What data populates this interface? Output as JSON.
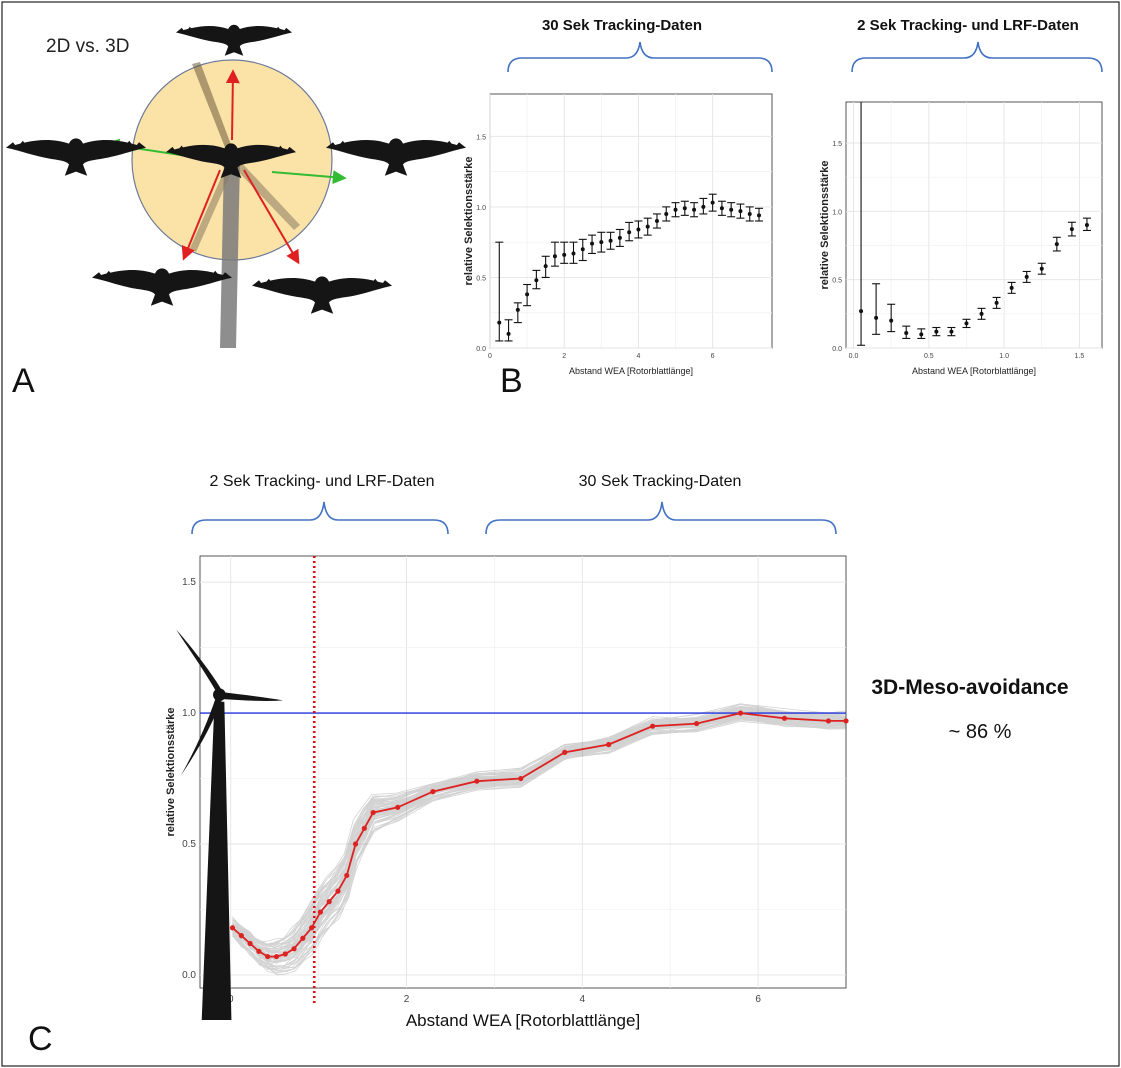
{
  "panels": {
    "a": {
      "letter": "A",
      "label": "2D vs. 3D"
    },
    "b": {
      "letter": "B"
    },
    "c": {
      "letter": "C"
    }
  },
  "colors": {
    "brace": "#4472c4",
    "reference_line": "#2233dd",
    "threshold_line": "#dd1111",
    "fit_line": "#dd2222",
    "rotor_disc": "#fbe3a8",
    "arrow_red": "#e02020",
    "arrow_green": "#33bb33",
    "silhouette": "#151515"
  },
  "icons": [
    "eagle-silhouette-icon",
    "wind-turbine-icon"
  ],
  "annotation": {
    "title": "3D-Meso-avoidance",
    "value": "~ 86 %"
  },
  "chart_data": [
    {
      "id": "b-left",
      "type": "scatter",
      "header": "30 Sek Tracking-Daten",
      "xlabel": "Abstand WEA [Rotorblattlänge]",
      "ylabel": "relative Selektionsstärke",
      "xlim": [
        0,
        7.6
      ],
      "ylim": [
        0,
        1.8
      ],
      "xticks": [
        {
          "v": 0,
          "label": "0"
        },
        {
          "v": 2,
          "label": "2"
        },
        {
          "v": 4,
          "label": "4"
        },
        {
          "v": 6,
          "label": "6"
        }
      ],
      "yticks": [
        {
          "v": 0,
          "label": "0.0"
        },
        {
          "v": 0.5,
          "label": "0.5"
        },
        {
          "v": 1,
          "label": "1.0"
        },
        {
          "v": 1.5,
          "label": "1.5"
        }
      ],
      "grid": true,
      "points": [
        {
          "x": 0.25,
          "y": 0.18,
          "lo": 0.05,
          "hi": 0.75
        },
        {
          "x": 0.5,
          "y": 0.1,
          "lo": 0.05,
          "hi": 0.2
        },
        {
          "x": 0.75,
          "y": 0.27,
          "lo": 0.18,
          "hi": 0.32
        },
        {
          "x": 1.0,
          "y": 0.38,
          "lo": 0.3,
          "hi": 0.45
        },
        {
          "x": 1.25,
          "y": 0.48,
          "lo": 0.42,
          "hi": 0.55
        },
        {
          "x": 1.5,
          "y": 0.58,
          "lo": 0.5,
          "hi": 0.65
        },
        {
          "x": 1.75,
          "y": 0.65,
          "lo": 0.58,
          "hi": 0.75
        },
        {
          "x": 2.0,
          "y": 0.66,
          "lo": 0.6,
          "hi": 0.75
        },
        {
          "x": 2.25,
          "y": 0.67,
          "lo": 0.6,
          "hi": 0.75
        },
        {
          "x": 2.5,
          "y": 0.7,
          "lo": 0.62,
          "hi": 0.77
        },
        {
          "x": 2.75,
          "y": 0.74,
          "lo": 0.67,
          "hi": 0.8
        },
        {
          "x": 3.0,
          "y": 0.75,
          "lo": 0.68,
          "hi": 0.82
        },
        {
          "x": 3.25,
          "y": 0.76,
          "lo": 0.7,
          "hi": 0.82
        },
        {
          "x": 3.5,
          "y": 0.78,
          "lo": 0.72,
          "hi": 0.84
        },
        {
          "x": 3.75,
          "y": 0.82,
          "lo": 0.76,
          "hi": 0.89
        },
        {
          "x": 4.0,
          "y": 0.84,
          "lo": 0.78,
          "hi": 0.9
        },
        {
          "x": 4.25,
          "y": 0.86,
          "lo": 0.8,
          "hi": 0.92
        },
        {
          "x": 4.5,
          "y": 0.9,
          "lo": 0.85,
          "hi": 0.95
        },
        {
          "x": 4.75,
          "y": 0.95,
          "lo": 0.9,
          "hi": 1.0
        },
        {
          "x": 5.0,
          "y": 0.98,
          "lo": 0.93,
          "hi": 1.03
        },
        {
          "x": 5.25,
          "y": 0.99,
          "lo": 0.94,
          "hi": 1.04
        },
        {
          "x": 5.5,
          "y": 0.98,
          "lo": 0.93,
          "hi": 1.03
        },
        {
          "x": 5.75,
          "y": 1.0,
          "lo": 0.95,
          "hi": 1.06
        },
        {
          "x": 6.0,
          "y": 1.03,
          "lo": 0.97,
          "hi": 1.09
        },
        {
          "x": 6.25,
          "y": 0.99,
          "lo": 0.94,
          "hi": 1.04
        },
        {
          "x": 6.5,
          "y": 0.98,
          "lo": 0.93,
          "hi": 1.03
        },
        {
          "x": 6.75,
          "y": 0.97,
          "lo": 0.92,
          "hi": 1.02
        },
        {
          "x": 7.0,
          "y": 0.95,
          "lo": 0.9,
          "hi": 1.0
        },
        {
          "x": 7.25,
          "y": 0.94,
          "lo": 0.9,
          "hi": 0.99
        }
      ]
    },
    {
      "id": "b-right",
      "type": "scatter",
      "header": "2 Sek Tracking- und LRF-Daten",
      "xlabel": "Abstand WEA [Rotorblattlänge]",
      "ylabel": "relative Selektionsstärke",
      "xlim": [
        -0.05,
        1.65
      ],
      "ylim": [
        0,
        1.8
      ],
      "xticks": [
        {
          "v": 0,
          "label": "0.0"
        },
        {
          "v": 0.5,
          "label": "0.5"
        },
        {
          "v": 1,
          "label": "1.0"
        },
        {
          "v": 1.5,
          "label": "1.5"
        }
      ],
      "yticks": [
        {
          "v": 0,
          "label": "0.0"
        },
        {
          "v": 0.5,
          "label": "0.5"
        },
        {
          "v": 1,
          "label": "1.0"
        },
        {
          "v": 1.5,
          "label": "1.5"
        }
      ],
      "grid": true,
      "points": [
        {
          "x": 0.05,
          "y": 0.27,
          "lo": 0.02,
          "hi": 1.8
        },
        {
          "x": 0.15,
          "y": 0.22,
          "lo": 0.1,
          "hi": 0.47
        },
        {
          "x": 0.25,
          "y": 0.2,
          "lo": 0.12,
          "hi": 0.32
        },
        {
          "x": 0.35,
          "y": 0.11,
          "lo": 0.07,
          "hi": 0.16
        },
        {
          "x": 0.45,
          "y": 0.1,
          "lo": 0.07,
          "hi": 0.14
        },
        {
          "x": 0.55,
          "y": 0.12,
          "lo": 0.09,
          "hi": 0.15
        },
        {
          "x": 0.65,
          "y": 0.12,
          "lo": 0.09,
          "hi": 0.15
        },
        {
          "x": 0.75,
          "y": 0.18,
          "lo": 0.15,
          "hi": 0.21
        },
        {
          "x": 0.85,
          "y": 0.25,
          "lo": 0.21,
          "hi": 0.29
        },
        {
          "x": 0.95,
          "y": 0.33,
          "lo": 0.29,
          "hi": 0.37
        },
        {
          "x": 1.05,
          "y": 0.44,
          "lo": 0.4,
          "hi": 0.48
        },
        {
          "x": 1.15,
          "y": 0.52,
          "lo": 0.48,
          "hi": 0.56
        },
        {
          "x": 1.25,
          "y": 0.58,
          "lo": 0.54,
          "hi": 0.62
        },
        {
          "x": 1.35,
          "y": 0.76,
          "lo": 0.71,
          "hi": 0.81
        },
        {
          "x": 1.45,
          "y": 0.87,
          "lo": 0.82,
          "hi": 0.92
        },
        {
          "x": 1.55,
          "y": 0.9,
          "lo": 0.86,
          "hi": 0.95
        }
      ]
    },
    {
      "id": "c-main",
      "type": "line",
      "header_left": "2 Sek Tracking- und LRF-Daten",
      "header_right": "30 Sek Tracking-Daten",
      "xlabel": "Abstand WEA [Rotorblattlänge]",
      "ylabel": "relative Selektionsstärke",
      "xlim": [
        -0.35,
        7.0
      ],
      "ylim": [
        -0.05,
        1.6
      ],
      "xticks": [
        {
          "v": 0,
          "label": "0"
        },
        {
          "v": 2,
          "label": "2"
        },
        {
          "v": 4,
          "label": "4"
        },
        {
          "v": 6,
          "label": "6"
        }
      ],
      "yticks": [
        {
          "v": 0,
          "label": "0.0"
        },
        {
          "v": 0.5,
          "label": "0.5"
        },
        {
          "v": 1,
          "label": "1.0"
        },
        {
          "v": 1.5,
          "label": "1.5"
        }
      ],
      "grid": true,
      "reference_y": 1.0,
      "threshold_x": 0.95,
      "fit": [
        {
          "x": 0.02,
          "y": 0.18
        },
        {
          "x": 0.12,
          "y": 0.15
        },
        {
          "x": 0.22,
          "y": 0.12
        },
        {
          "x": 0.32,
          "y": 0.09
        },
        {
          "x": 0.42,
          "y": 0.07
        },
        {
          "x": 0.52,
          "y": 0.07
        },
        {
          "x": 0.62,
          "y": 0.08
        },
        {
          "x": 0.72,
          "y": 0.1
        },
        {
          "x": 0.82,
          "y": 0.14
        },
        {
          "x": 0.92,
          "y": 0.18
        },
        {
          "x": 1.02,
          "y": 0.24
        },
        {
          "x": 1.12,
          "y": 0.28
        },
        {
          "x": 1.22,
          "y": 0.32
        },
        {
          "x": 1.32,
          "y": 0.38
        },
        {
          "x": 1.42,
          "y": 0.5
        },
        {
          "x": 1.52,
          "y": 0.56
        },
        {
          "x": 1.62,
          "y": 0.62
        },
        {
          "x": 1.9,
          "y": 0.64
        },
        {
          "x": 2.3,
          "y": 0.7
        },
        {
          "x": 2.8,
          "y": 0.74
        },
        {
          "x": 3.3,
          "y": 0.75
        },
        {
          "x": 3.8,
          "y": 0.85
        },
        {
          "x": 4.3,
          "y": 0.88
        },
        {
          "x": 4.8,
          "y": 0.95
        },
        {
          "x": 5.3,
          "y": 0.96
        },
        {
          "x": 5.8,
          "y": 1.0
        },
        {
          "x": 6.3,
          "y": 0.98
        },
        {
          "x": 6.8,
          "y": 0.97
        },
        {
          "x": 7.0,
          "y": 0.97
        }
      ]
    }
  ]
}
